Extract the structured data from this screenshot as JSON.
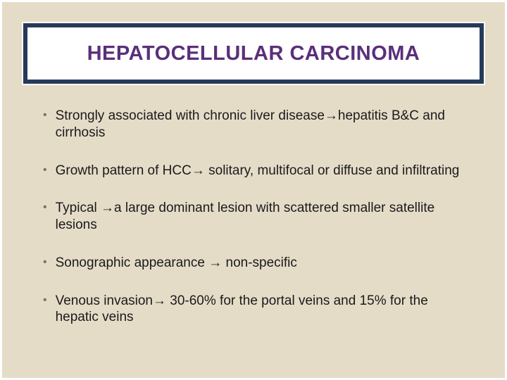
{
  "slide": {
    "title": "HEPATOCELLULAR CARCINOMA",
    "title_color": "#5a2f7a",
    "title_fontsize": 29,
    "title_box_bg": "#263a59",
    "title_box_border": "#ffffff",
    "background_color": "#e5dcc8",
    "bullet_color": "#6b7a5c",
    "text_color": "#1a1a1a",
    "body_fontsize": 19,
    "bullets": [
      "Strongly associated with chronic liver disease→hepatitis B&C and cirrhosis",
      "Growth pattern of HCC→ solitary, multifocal or diffuse and infiltrating",
      "Typical →a large dominant lesion with scattered smaller satellite lesions",
      "Sonographic appearance → non-specific",
      "Venous invasion→ 30-60% for the portal veins and 15% for the hepatic veins"
    ]
  }
}
